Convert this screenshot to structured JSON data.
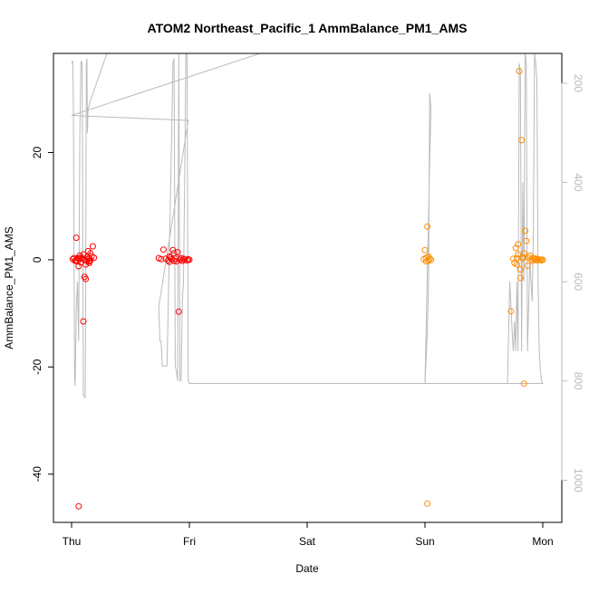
{
  "chart_data": {
    "type": "scatter",
    "title": "ATOM2 Northeast_Pacific_1 AmmBalance_PM1_AMS",
    "xlabel": "Date",
    "ylabel": "AmmBalance_PM1_AMS",
    "x_categories": [
      "Thu",
      "Fri",
      "Sat",
      "Sun",
      "Mon"
    ],
    "xlim": [
      "Thu",
      "Mon"
    ],
    "ylim": [
      -49,
      38.5
    ],
    "y_ticks": [
      -40,
      -20,
      0,
      20
    ],
    "y2_ticks": [
      200,
      400,
      600,
      800,
      1000
    ],
    "y2lim": [
      1085,
      140
    ],
    "grid": false,
    "colors": {
      "series1": "#ff0000",
      "series2": "#ff8c00",
      "altitude": "#bbbbbb",
      "axis": "#000000",
      "right_axis": "#bbbbbb"
    },
    "series": [
      {
        "color": "#ff0000",
        "points": [
          [
            0.03,
            -0.2
          ],
          [
            0.04,
            4.1
          ],
          [
            0.05,
            0.3
          ],
          [
            0.06,
            -1.2
          ],
          [
            0.07,
            0.8
          ],
          [
            0.08,
            -0.5
          ],
          [
            0.09,
            0.2
          ],
          [
            0.1,
            -11.5
          ],
          [
            0.11,
            -3.2
          ],
          [
            0.12,
            -3.6
          ],
          [
            0.13,
            0.5
          ],
          [
            0.14,
            0.1
          ],
          [
            0.15,
            -0.3
          ],
          [
            0.16,
            1.2
          ],
          [
            0.17,
            0.6
          ],
          [
            0.15,
            -0.6
          ],
          [
            0.01,
            0.1
          ],
          [
            0.02,
            0.3
          ],
          [
            0.04,
            -0.1
          ],
          [
            0.05,
            -0.3
          ],
          [
            0.06,
            0.2
          ],
          [
            0.08,
            0.4
          ],
          [
            0.11,
            0.0
          ],
          [
            0.13,
            -0.2
          ],
          [
            0.15,
            0.3
          ],
          [
            0.16,
            -0.1
          ],
          [
            0.18,
            2.5
          ],
          [
            0.19,
            0.4
          ],
          [
            0.12,
            -0.9
          ],
          [
            0.06,
            -46.0
          ],
          [
            0.14,
            1.6
          ],
          [
            0.1,
            1.0
          ],
          [
            0.74,
            0.3
          ],
          [
            0.76,
            0.1
          ],
          [
            0.78,
            1.9
          ],
          [
            0.8,
            0.2
          ],
          [
            0.82,
            -0.1
          ],
          [
            0.83,
            -0.4
          ],
          [
            0.84,
            0.4
          ],
          [
            0.85,
            0.1
          ],
          [
            0.86,
            1.8
          ],
          [
            0.87,
            1.2
          ],
          [
            0.88,
            0.2
          ],
          [
            0.89,
            -0.3
          ],
          [
            0.9,
            1.4
          ],
          [
            0.91,
            -9.7
          ],
          [
            0.92,
            0.0
          ],
          [
            0.93,
            0.3
          ],
          [
            0.94,
            -0.2
          ],
          [
            0.95,
            0.2
          ],
          [
            0.96,
            0.0
          ],
          [
            0.98,
            -0.1
          ],
          [
            0.99,
            0.1
          ],
          [
            1.0,
            0.0
          ],
          [
            0.87,
            -0.2
          ],
          [
            0.83,
            0.6
          ]
        ]
      },
      {
        "color": "#ff8c00",
        "points": [
          [
            2.99,
            0.1
          ],
          [
            3.0,
            1.8
          ],
          [
            3.01,
            0.4
          ],
          [
            3.02,
            6.2
          ],
          [
            3.03,
            -0.2
          ],
          [
            3.04,
            0.2
          ],
          [
            3.05,
            0.0
          ],
          [
            3.02,
            -45.5
          ],
          [
            3.01,
            -0.3
          ],
          [
            3.03,
            0.6
          ],
          [
            3.73,
            -9.6
          ],
          [
            3.75,
            0.2
          ],
          [
            3.77,
            2.2
          ],
          [
            3.78,
            0.3
          ],
          [
            3.79,
            2.9
          ],
          [
            3.8,
            35.2
          ],
          [
            3.81,
            -1.8
          ],
          [
            3.82,
            22.3
          ],
          [
            3.83,
            0.5
          ],
          [
            3.84,
            1.2
          ],
          [
            3.85,
            5.4
          ],
          [
            3.86,
            3.5
          ],
          [
            3.87,
            -1.1
          ],
          [
            3.88,
            0.4
          ],
          [
            3.89,
            0.8
          ],
          [
            3.9,
            0.1
          ],
          [
            3.91,
            -0.2
          ],
          [
            3.92,
            0.3
          ],
          [
            3.93,
            0.0
          ],
          [
            3.94,
            0.2
          ],
          [
            3.95,
            -0.1
          ],
          [
            3.96,
            0.1
          ],
          [
            3.97,
            0.0
          ],
          [
            3.98,
            0.0
          ],
          [
            3.99,
            -0.1
          ],
          [
            4.0,
            0.0
          ],
          [
            3.84,
            -23.1
          ],
          [
            3.81,
            -3.4
          ],
          [
            3.76,
            -0.6
          ],
          [
            3.78,
            -0.9
          ],
          [
            3.79,
            1.0
          ],
          [
            3.83,
            0.2
          ]
        ]
      }
    ],
    "altitude_trace": [
      [
        0.0,
        160
      ],
      [
        0.01,
        155
      ],
      [
        0.015,
        250
      ],
      [
        0.02,
        500
      ],
      [
        0.025,
        790
      ],
      [
        0.03,
        810
      ],
      [
        0.04,
        650
      ],
      [
        0.05,
        600
      ],
      [
        0.06,
        720
      ],
      [
        0.07,
        300
      ],
      [
        0.08,
        155
      ],
      [
        0.09,
        160
      ],
      [
        0.1,
        830
      ],
      [
        0.11,
        830
      ],
      [
        0.115,
        835
      ],
      [
        0.12,
        600
      ],
      [
        0.125,
        160
      ],
      [
        0.13,
        150
      ],
      [
        0.135,
        300
      ],
      [
        0.14,
        250
      ],
      [
        0.15,
        245
      ],
      [
        0.15,
        242
      ],
      [
        0.3,
        140
      ],
      [
        1.0,
        140
      ],
      [
        1.5,
        140
      ],
      [
        1.6,
        140
      ],
      [
        0.0,
        265
      ],
      [
        0.5,
        270
      ],
      [
        0.99,
        275
      ],
      [
        0.74,
        650
      ],
      [
        0.75,
        720
      ],
      [
        0.76,
        720
      ],
      [
        0.77,
        770
      ],
      [
        0.78,
        770
      ],
      [
        0.79,
        770
      ],
      [
        0.8,
        770
      ],
      [
        0.81,
        770
      ],
      [
        0.85,
        300
      ],
      [
        0.86,
        160
      ],
      [
        0.87,
        150
      ],
      [
        0.88,
        770
      ],
      [
        0.89,
        780
      ],
      [
        0.9,
        800
      ],
      [
        0.91,
        140
      ],
      [
        0.92,
        800
      ],
      [
        0.93,
        800
      ],
      [
        0.94,
        640
      ],
      [
        0.95,
        600
      ],
      [
        0.96,
        400
      ],
      [
        0.97,
        140
      ],
      [
        0.98,
        140
      ],
      [
        0.99,
        800
      ],
      [
        1.0,
        805
      ],
      [
        3.0,
        805
      ],
      [
        3.02,
        700
      ],
      [
        3.03,
        600
      ],
      [
        3.04,
        220
      ],
      [
        3.05,
        250
      ],
      [
        3.0,
        805
      ],
      [
        3.2,
        805
      ],
      [
        3.5,
        805
      ],
      [
        3.7,
        805
      ],
      [
        3.72,
        600
      ],
      [
        3.74,
        700
      ],
      [
        3.75,
        740
      ],
      [
        3.76,
        680
      ],
      [
        3.77,
        740
      ],
      [
        3.78,
        600
      ],
      [
        3.79,
        740
      ],
      [
        3.8,
        160
      ],
      [
        3.81,
        180
      ],
      [
        3.82,
        740
      ],
      [
        3.83,
        400
      ],
      [
        3.84,
        600
      ],
      [
        3.85,
        140
      ],
      [
        3.86,
        160
      ],
      [
        3.87,
        740
      ],
      [
        3.88,
        650
      ],
      [
        3.89,
        560
      ],
      [
        3.9,
        600
      ],
      [
        3.91,
        640
      ],
      [
        3.92,
        500
      ],
      [
        3.93,
        140
      ],
      [
        3.94,
        160
      ],
      [
        3.95,
        195
      ],
      [
        3.96,
        600
      ],
      [
        3.97,
        740
      ],
      [
        3.98,
        780
      ],
      [
        3.99,
        800
      ],
      [
        4.0,
        805
      ],
      [
        3.7,
        805
      ]
    ]
  }
}
